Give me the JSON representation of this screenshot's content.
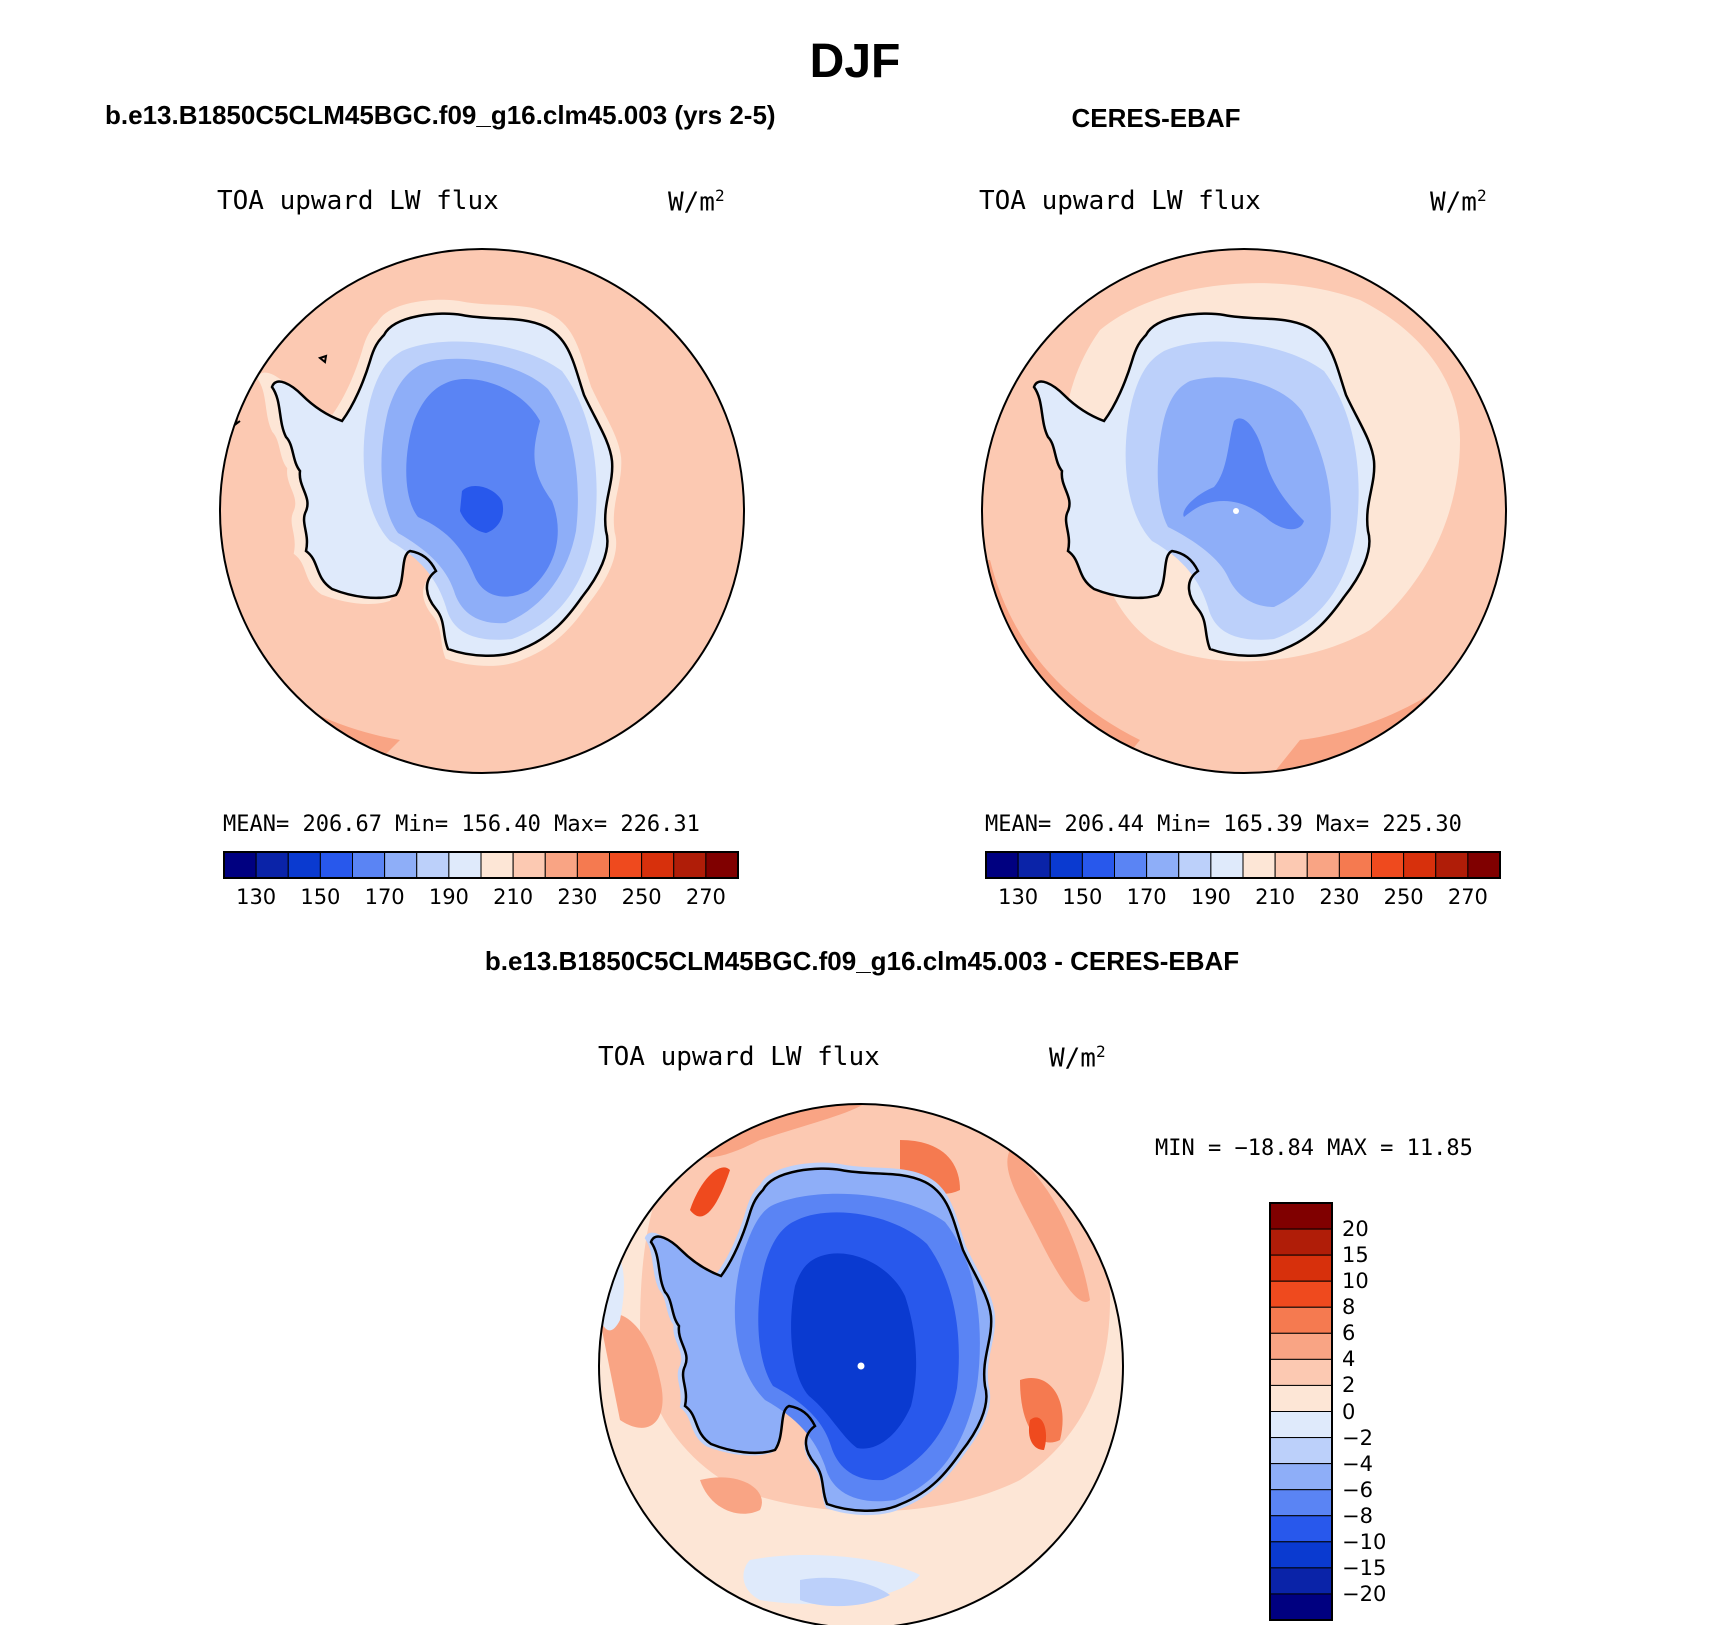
{
  "title": "DJF",
  "panels": [
    {
      "id": "model",
      "title": "b.e13.B1850C5CLM45BGC.f09_g16.clm45.003 (yrs 2-5)",
      "variable": "TOA upward LW flux",
      "units": "W/m",
      "units_sup": "2",
      "stats": "MEAN= 206.67   Min= 156.40   Max= 226.31"
    },
    {
      "id": "obs",
      "title": "CERES-EBAF",
      "variable": "TOA upward LW flux",
      "units": "W/m",
      "units_sup": "2",
      "stats": "MEAN= 206.44   Min= 165.39   Max= 225.30"
    },
    {
      "id": "diff",
      "title": "b.e13.B1850C5CLM45BGC.f09_g16.clm45.003 - CERES-EBAF",
      "variable": "TOA upward LW flux",
      "units": "W/m",
      "units_sup": "2",
      "stats": "MIN = −18.84 MAX =   11.85"
    }
  ],
  "colorbar_abs": {
    "colors": [
      "#000080",
      "#0a23a8",
      "#0a3ad0",
      "#2858ec",
      "#5a84f4",
      "#8eaef8",
      "#bcd0fa",
      "#dfeafb",
      "#fde6d6",
      "#fcc9b2",
      "#f9a484",
      "#f57a50",
      "#ef4a1e",
      "#d7300c",
      "#b01d08",
      "#800000"
    ],
    "labels": [
      "130",
      "150",
      "170",
      "190",
      "210",
      "230",
      "250",
      "270"
    ]
  },
  "colorbar_diff": {
    "colors": [
      "#800000",
      "#b01d08",
      "#d7300c",
      "#ef4a1e",
      "#f57a50",
      "#f9a484",
      "#fcc9b2",
      "#fde6d6",
      "#dfeafb",
      "#bcd0fa",
      "#8eaef8",
      "#5a84f4",
      "#2858ec",
      "#0a3ad0",
      "#0a23a8",
      "#000080"
    ],
    "labels": [
      "20",
      "15",
      "10",
      "8",
      "6",
      "4",
      "2",
      "0",
      "−2",
      "−4",
      "−6",
      "−8",
      "−10",
      "−15",
      "−20"
    ]
  }
}
